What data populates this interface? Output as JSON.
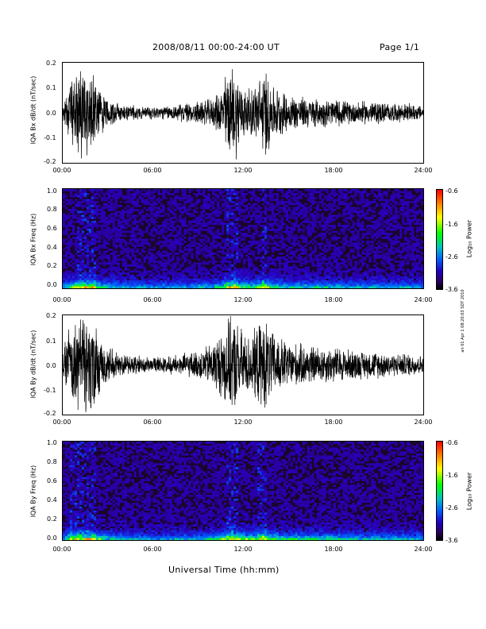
{
  "header": {
    "date_range": "2008/08/11  00:00-24:00 UT",
    "page": "Page 1/1"
  },
  "xaxis": {
    "ticks": [
      "00:00",
      "06:00",
      "12:00",
      "18:00",
      "24:00"
    ],
    "label": "Universal Time (hh:mm)"
  },
  "side_note": "an 01 Apr 1 08:20:03 SDT 2010",
  "colorbar": {
    "label": "Log₁₀ Power",
    "ticks": [
      "-0.6",
      "-1.6",
      "-2.6",
      "-3.6"
    ]
  },
  "colors": {
    "trace": "#000000",
    "background": "#ffffff"
  },
  "chart_data": [
    {
      "type": "line",
      "ylabel": "IQA Bx dB/dt (nT/sec)",
      "ylim": [
        -0.2,
        0.2
      ],
      "yticks": [
        "0.2",
        "0.1",
        "0.0",
        "-0.1",
        "-0.2"
      ],
      "xlim_hours": [
        0,
        24
      ],
      "envelope": {
        "x_hours": [
          0,
          0.5,
          1,
          1.5,
          2,
          2.5,
          3,
          4,
          5,
          6,
          7,
          8,
          9,
          10,
          10.5,
          11,
          11.5,
          12,
          12.5,
          13,
          13.5,
          14,
          15,
          16,
          17,
          18,
          19,
          20,
          21,
          22,
          23,
          24
        ],
        "amplitude": [
          0.03,
          0.12,
          0.2,
          0.2,
          0.2,
          0.1,
          0.06,
          0.04,
          0.03,
          0.03,
          0.03,
          0.04,
          0.05,
          0.06,
          0.1,
          0.2,
          0.2,
          0.12,
          0.1,
          0.14,
          0.2,
          0.12,
          0.08,
          0.07,
          0.06,
          0.06,
          0.05,
          0.05,
          0.05,
          0.04,
          0.04,
          0.03
        ]
      }
    },
    {
      "type": "heatmap",
      "ylabel": "IQA Bx Freq (Hz)",
      "ylim": [
        0.0,
        1.0
      ],
      "yticks": [
        "1.0",
        "0.8",
        "0.6",
        "0.4",
        "0.2",
        "0.0"
      ],
      "zlim": [
        -3.6,
        -0.6
      ],
      "zlabel": "Log₁₀ Power"
    },
    {
      "type": "line",
      "ylabel": "IQA By dB/dt (nT/sec)",
      "ylim": [
        -0.2,
        0.2
      ],
      "yticks": [
        "0.2",
        "0.1",
        "0.0",
        "-0.1",
        "-0.2"
      ],
      "xlim_hours": [
        0,
        24
      ],
      "envelope": {
        "x_hours": [
          0,
          0.5,
          1,
          1.5,
          2,
          2.5,
          3,
          4,
          5,
          6,
          7,
          8,
          9,
          10,
          10.5,
          11,
          11.5,
          12,
          12.5,
          13,
          13.5,
          14,
          15,
          16,
          17,
          18,
          19,
          20,
          21,
          22,
          23,
          24
        ],
        "amplitude": [
          0.05,
          0.2,
          0.2,
          0.2,
          0.2,
          0.12,
          0.08,
          0.05,
          0.04,
          0.03,
          0.04,
          0.05,
          0.06,
          0.1,
          0.14,
          0.2,
          0.2,
          0.15,
          0.12,
          0.18,
          0.2,
          0.14,
          0.1,
          0.09,
          0.08,
          0.08,
          0.07,
          0.06,
          0.06,
          0.05,
          0.05,
          0.04
        ]
      }
    },
    {
      "type": "heatmap",
      "ylabel": "IQA By Freq (Hz)",
      "ylim": [
        0.0,
        1.0
      ],
      "yticks": [
        "1.0",
        "0.8",
        "0.6",
        "0.4",
        "0.2",
        "0.0"
      ],
      "zlim": [
        -3.6,
        -0.6
      ],
      "zlabel": "Log₁₀ Power"
    }
  ]
}
